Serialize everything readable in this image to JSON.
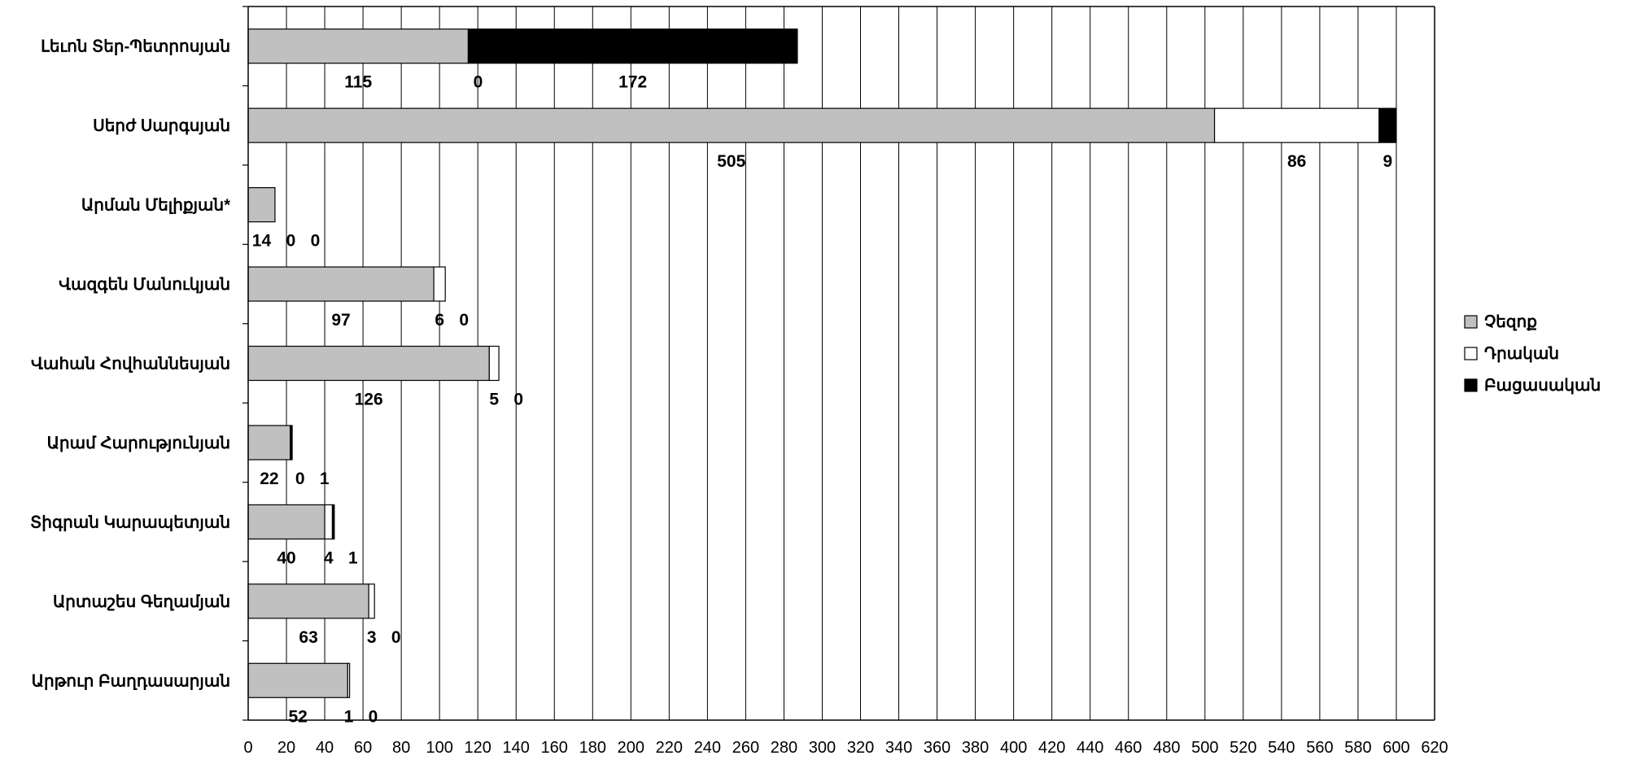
{
  "chart_data": {
    "type": "bar",
    "orientation": "horizontal",
    "stacked": true,
    "categories": [
      "Լեւոն Տեր-Պետրոսյան",
      "Սերժ Սարգսյան",
      "Արման Մելիքյան*",
      "Վազգեն Մանուկյան",
      "Վահան Հովհաննեսյան",
      "Արամ Հարությունյան",
      "Տիգրան Կարապետյան",
      "Արտաշես Գեղամյան",
      "Արթուր Բաղդասարյան"
    ],
    "series": [
      {
        "name": "Չեզոք",
        "color": "#c0c0c0",
        "values": [
          115,
          505,
          14,
          97,
          126,
          22,
          40,
          63,
          52
        ]
      },
      {
        "name": "Դրական",
        "color": "#ffffff",
        "values": [
          0,
          86,
          0,
          6,
          5,
          0,
          4,
          3,
          1
        ]
      },
      {
        "name": "Բացասական",
        "color": "#000000",
        "values": [
          172,
          9,
          0,
          0,
          0,
          1,
          1,
          0,
          0
        ]
      }
    ],
    "title": "",
    "xlabel": "",
    "ylabel": "",
    "xlim": [
      0,
      620
    ],
    "xticks": [
      0,
      20,
      40,
      60,
      80,
      100,
      120,
      140,
      160,
      180,
      200,
      220,
      240,
      260,
      280,
      300,
      320,
      340,
      360,
      380,
      400,
      420,
      440,
      460,
      480,
      500,
      520,
      540,
      560,
      580,
      600,
      620
    ],
    "grid": "vertical",
    "legend_position": "right"
  }
}
